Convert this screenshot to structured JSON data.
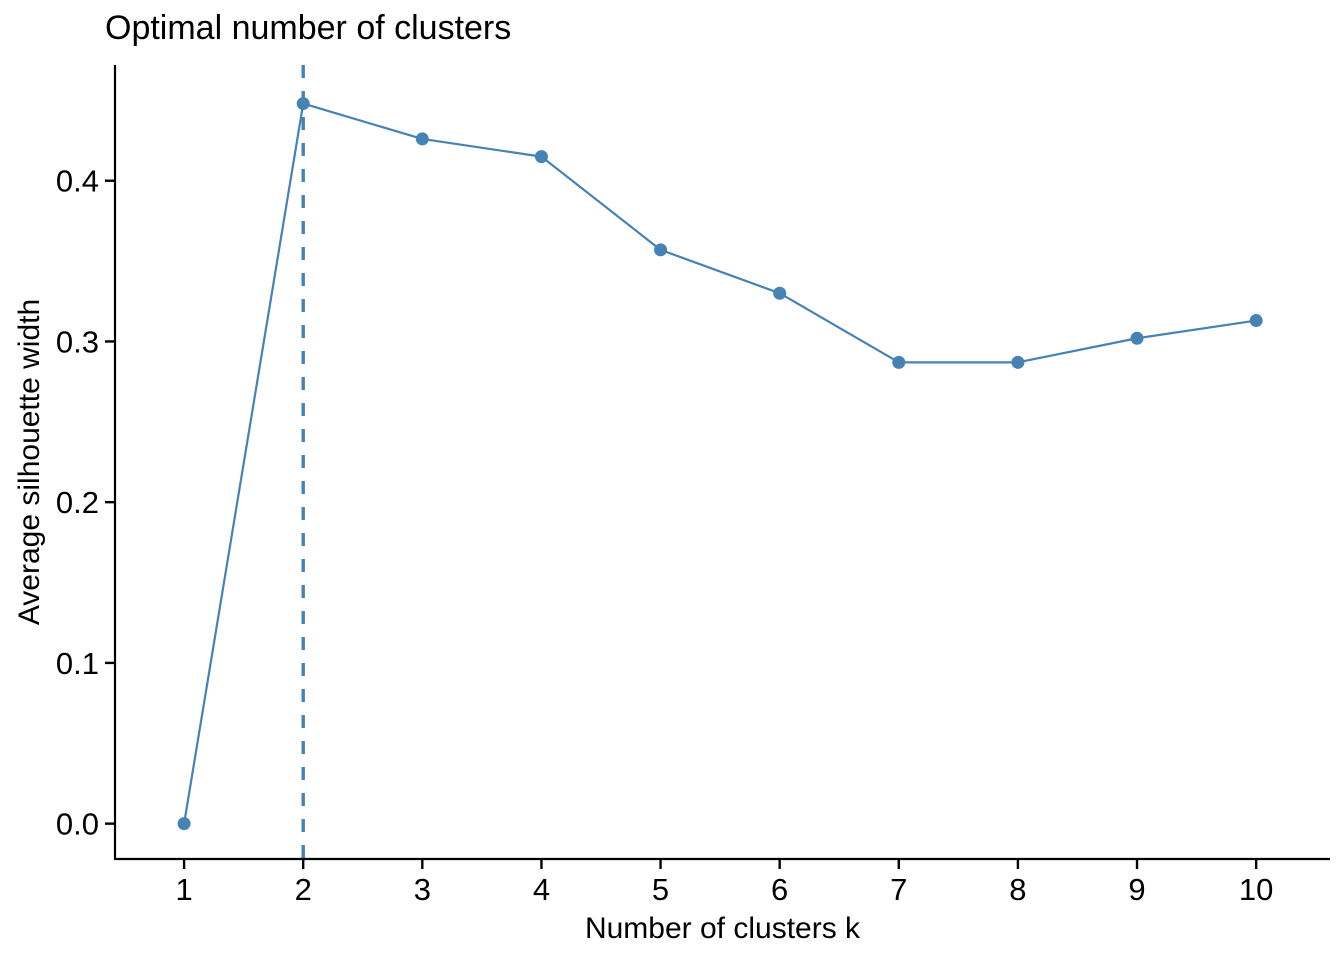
{
  "chart_data": {
    "type": "line",
    "title": "Optimal number of clusters",
    "xlabel": "Number of clusters k",
    "ylabel": "Average silhouette width",
    "series": [
      {
        "name": "Average silhouette width",
        "x": [
          1,
          2,
          3,
          4,
          5,
          6,
          7,
          8,
          9,
          10
        ],
        "values": [
          0.0,
          0.448,
          0.426,
          0.415,
          0.357,
          0.33,
          0.287,
          0.287,
          0.302,
          0.313
        ]
      }
    ],
    "x_tick_labels": [
      "1",
      "2",
      "3",
      "4",
      "5",
      "6",
      "7",
      "8",
      "9",
      "10"
    ],
    "y_ticks": [
      0.0,
      0.1,
      0.2,
      0.3,
      0.4
    ],
    "y_tick_labels": [
      "0.0",
      "0.1",
      "0.2",
      "0.3",
      "0.4"
    ],
    "xlim": [
      0.42,
      10.62
    ],
    "ylim": [
      -0.022,
      0.472
    ],
    "grid": false,
    "legend": "none",
    "annotations": [
      {
        "kind": "vline",
        "x": 2,
        "style": "dashed"
      }
    ],
    "colors": {
      "line": "#4682B4",
      "point": "#4682B4",
      "vline": "#4682B4",
      "axis": "#000000",
      "tick_text": "#000000",
      "title_text": "#000000",
      "background": "#ffffff"
    }
  }
}
